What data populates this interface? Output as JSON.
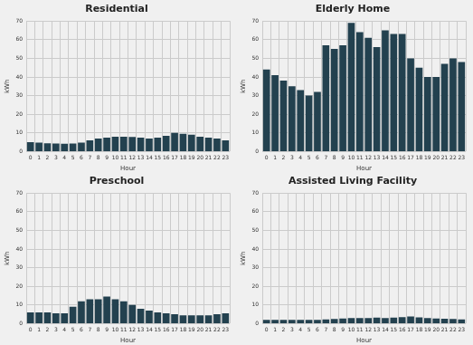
{
  "chart_data": [
    {
      "type": "bar",
      "title": "Residential",
      "x_label": "Hour",
      "y_label": "kWh",
      "categories": [
        "0",
        "1",
        "2",
        "3",
        "4",
        "5",
        "6",
        "7",
        "8",
        "9",
        "10",
        "11",
        "12",
        "13",
        "14",
        "15",
        "16",
        "17",
        "18",
        "19",
        "20",
        "21",
        "22",
        "23"
      ],
      "values": [
        5,
        4.8,
        4.5,
        4.3,
        4.2,
        4.3,
        4.8,
        6,
        7,
        7.5,
        8,
        8,
        7.8,
        7.5,
        7,
        7.5,
        8.5,
        10,
        9.5,
        9,
        8,
        7.5,
        7,
        6
      ],
      "color": "#23414f",
      "ylim": [
        0,
        70
      ],
      "yticks": [
        0,
        10,
        20,
        30,
        40,
        50,
        60,
        70
      ],
      "grid": true
    },
    {
      "type": "bar",
      "title": "Elderly Home",
      "x_label": "Hour",
      "y_label": "kWh",
      "categories": [
        "0",
        "1",
        "2",
        "3",
        "4",
        "5",
        "6",
        "7",
        "8",
        "9",
        "10",
        "11",
        "12",
        "13",
        "14",
        "15",
        "16",
        "17",
        "18",
        "19",
        "20",
        "21",
        "22",
        "23"
      ],
      "values": [
        44,
        41,
        38,
        35,
        33,
        30,
        32,
        57,
        55,
        57,
        69,
        64,
        61,
        56,
        65,
        63,
        63,
        50,
        45,
        40,
        40,
        47,
        50,
        48
      ],
      "color": "#23414f",
      "ylim": [
        0,
        70
      ],
      "yticks": [
        0,
        10,
        20,
        30,
        40,
        50,
        60,
        70
      ],
      "grid": true
    },
    {
      "type": "bar",
      "title": "Preschool",
      "x_label": "Hour",
      "y_label": "kWh",
      "categories": [
        "0",
        "1",
        "2",
        "3",
        "4",
        "5",
        "6",
        "7",
        "8",
        "9",
        "10",
        "11",
        "12",
        "13",
        "14",
        "15",
        "16",
        "17",
        "18",
        "19",
        "20",
        "21",
        "22",
        "23"
      ],
      "values": [
        6,
        6,
        6,
        5.5,
        5.5,
        9,
        12,
        13,
        13,
        14.5,
        13,
        12,
        10,
        8,
        7,
        6,
        5.5,
        5,
        4.5,
        4.5,
        4.5,
        4.5,
        5,
        5.5
      ],
      "color": "#23414f",
      "ylim": [
        0,
        70
      ],
      "yticks": [
        0,
        10,
        20,
        30,
        40,
        50,
        60,
        70
      ],
      "grid": true
    },
    {
      "type": "bar",
      "title": "Assisted Living Facility",
      "x_label": "Hour",
      "y_label": "kWh",
      "categories": [
        "0",
        "1",
        "2",
        "3",
        "4",
        "5",
        "6",
        "7",
        "8",
        "9",
        "10",
        "11",
        "12",
        "13",
        "14",
        "15",
        "16",
        "17",
        "18",
        "19",
        "20",
        "21",
        "22",
        "23"
      ],
      "values": [
        2,
        2,
        2,
        2,
        2,
        2,
        2,
        2.3,
        2.5,
        2.8,
        3,
        3,
        3,
        3.2,
        3,
        3.2,
        3.5,
        3.8,
        3.3,
        3,
        2.8,
        2.6,
        2.5,
        2.2
      ],
      "color": "#23414f",
      "ylim": [
        0,
        70
      ],
      "yticks": [
        0,
        10,
        20,
        30,
        40,
        50,
        60,
        70
      ],
      "grid": true
    }
  ]
}
